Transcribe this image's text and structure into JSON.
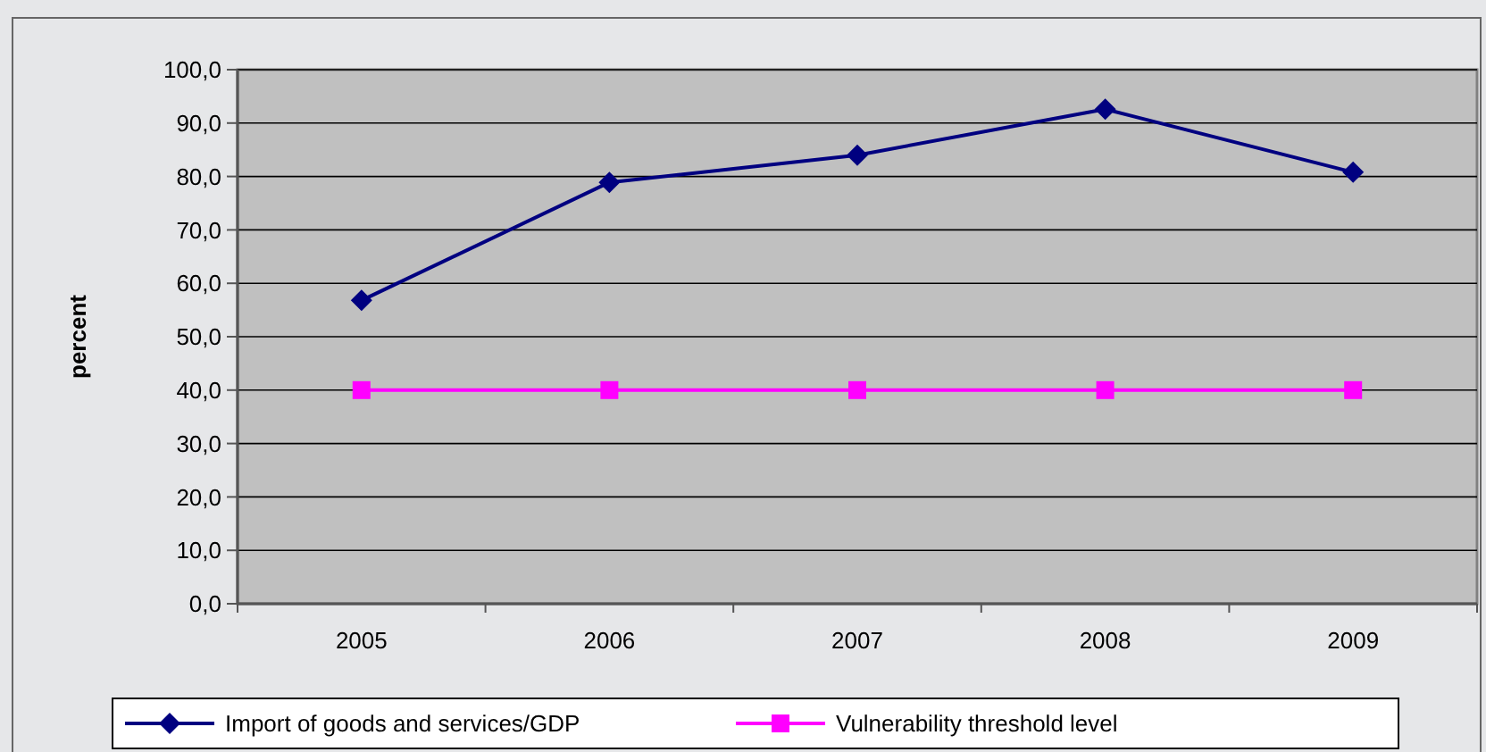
{
  "chart_data": {
    "type": "line",
    "ylabel": "percent",
    "categories": [
      "2005",
      "2006",
      "2007",
      "2008",
      "2009"
    ],
    "series": [
      {
        "name": "Import of goods and services/GDP",
        "color": "#000080",
        "marker": "diamond",
        "values": [
          56.8,
          78.9,
          84.0,
          92.6,
          80.8
        ]
      },
      {
        "name": "Vulnerability threshold level",
        "color": "#ff00ff",
        "marker": "square",
        "values": [
          40,
          40,
          40,
          40,
          40
        ]
      }
    ],
    "ylim": [
      0,
      100
    ],
    "yticks": [
      {
        "value": 0,
        "label": "0,0"
      },
      {
        "value": 10,
        "label": "10,0"
      },
      {
        "value": 20,
        "label": "20,0"
      },
      {
        "value": 30,
        "label": "30,0"
      },
      {
        "value": 40,
        "label": "40,0"
      },
      {
        "value": 50,
        "label": "50,0"
      },
      {
        "value": 60,
        "label": "60,0"
      },
      {
        "value": 70,
        "label": "70,0"
      },
      {
        "value": 80,
        "label": "80,0"
      },
      {
        "value": 90,
        "label": "90,0"
      },
      {
        "value": 100,
        "label": "100,0"
      }
    ],
    "grid": "y",
    "legend": "bottom"
  }
}
